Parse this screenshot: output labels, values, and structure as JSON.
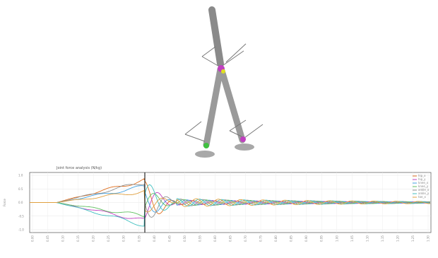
{
  "viewport": {
    "background": "#ffffff",
    "bone_color": "#9a9a9a",
    "marker_colors": [
      "#c040c0",
      "#e0e020",
      "#40c040"
    ]
  },
  "plot": {
    "title": "Joint force analysis (N/kg)",
    "y_label": "Force",
    "y_ticks": [
      "1.0",
      "0.5",
      "0.0",
      "-0.5",
      "-1.0"
    ],
    "x_ticks": [
      "0.00",
      "0.05",
      "0.10",
      "0.15",
      "0.20",
      "0.25",
      "0.30",
      "0.35",
      "0.40",
      "0.45",
      "0.50",
      "0.55",
      "0.60",
      "0.65",
      "0.70",
      "0.75",
      "0.80",
      "0.85",
      "0.90",
      "0.95",
      "1.00",
      "1.05",
      "1.10",
      "1.15",
      "1.20",
      "1.25",
      "1.30"
    ],
    "legend": [
      "hip_x",
      "hip_y",
      "knee_x",
      "knee_y",
      "ankle_x",
      "ankle_y",
      "toe_x"
    ],
    "series_colors": [
      "#e07020",
      "#c040c0",
      "#40a0e0",
      "#60c060",
      "#909090",
      "#40c0c0",
      "#e0a040"
    ]
  }
}
